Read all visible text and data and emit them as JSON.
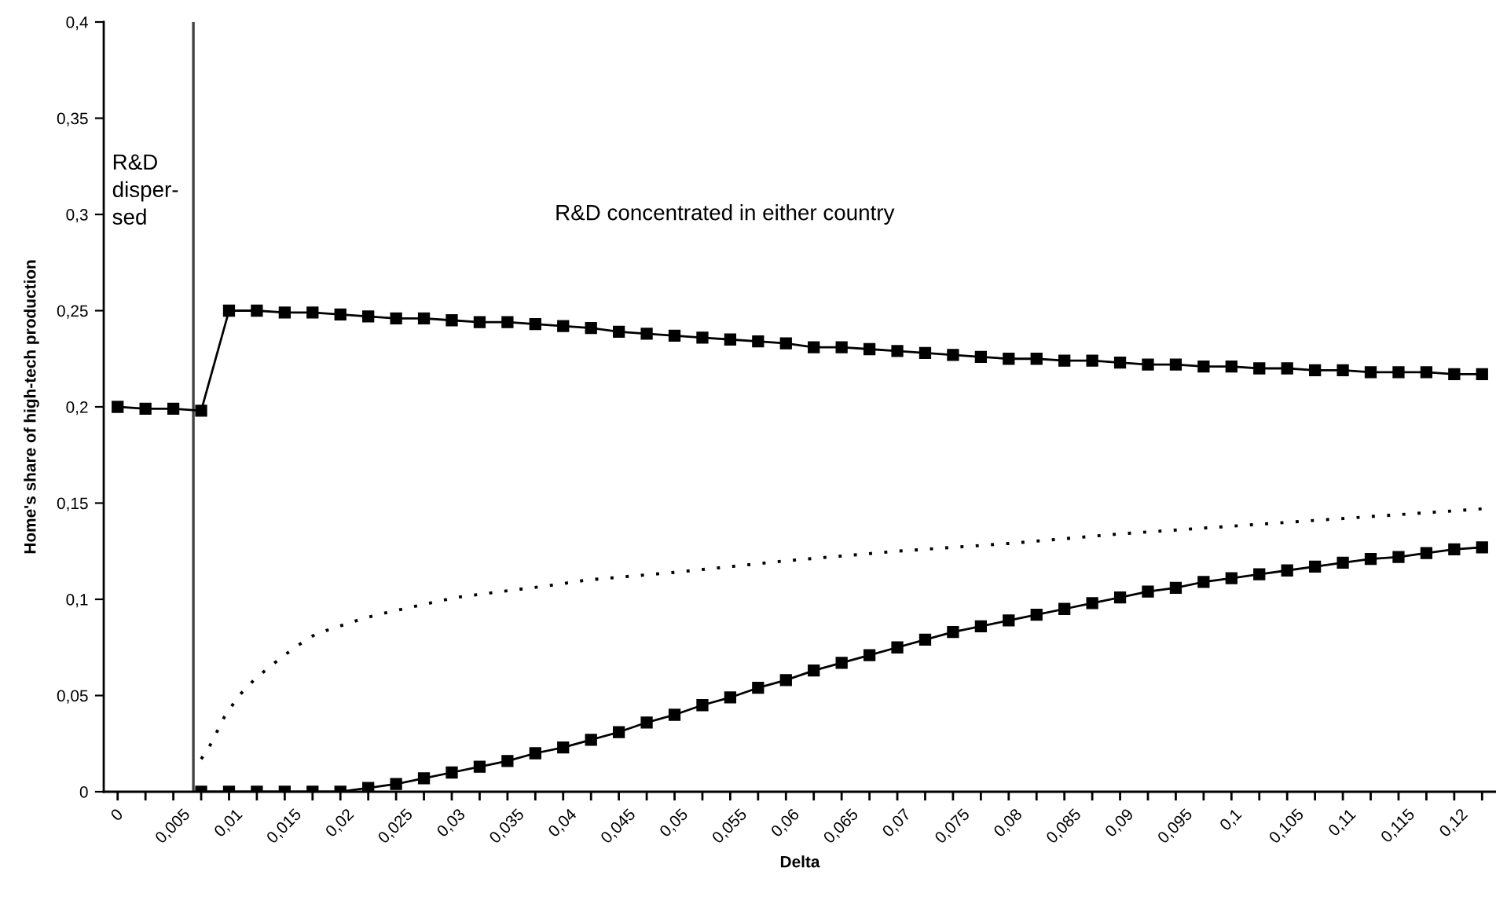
{
  "chart_data": {
    "type": "line",
    "xlabel": "Delta",
    "ylabel": "Home's share of high-tech production",
    "x": [
      0,
      0.0025,
      0.005,
      0.0075,
      0.01,
      0.0125,
      0.015,
      0.0175,
      0.02,
      0.0225,
      0.025,
      0.0275,
      0.03,
      0.0325,
      0.035,
      0.0375,
      0.04,
      0.0425,
      0.045,
      0.0475,
      0.05,
      0.0525,
      0.055,
      0.0575,
      0.06,
      0.0625,
      0.065,
      0.0675,
      0.07,
      0.0725,
      0.075,
      0.0775,
      0.08,
      0.0825,
      0.085,
      0.0875,
      0.09,
      0.0925,
      0.095,
      0.0975,
      0.1,
      0.1025,
      0.105,
      0.1075,
      0.11,
      0.1125,
      0.115,
      0.1175,
      0.12,
      0.1225
    ],
    "series": [
      {
        "color": "#000000",
        "marker": "square",
        "line_style": "solid",
        "values": [
          0.2,
          0.199,
          0.199,
          0.198,
          0.25,
          0.25,
          0.249,
          0.249,
          0.248,
          0.247,
          0.246,
          0.246,
          0.245,
          0.244,
          0.244,
          0.243,
          0.242,
          0.241,
          0.239,
          0.238,
          0.237,
          0.236,
          0.235,
          0.234,
          0.233,
          0.231,
          0.231,
          0.23,
          0.229,
          0.228,
          0.227,
          0.226,
          0.225,
          0.225,
          0.224,
          0.224,
          0.223,
          0.222,
          0.222,
          0.221,
          0.221,
          0.22,
          0.22,
          0.219,
          0.219,
          0.218,
          0.218,
          0.218,
          0.217,
          0.217
        ]
      },
      {
        "color": "#000000",
        "marker": "square",
        "line_style": "solid",
        "values": [
          null,
          null,
          null,
          0,
          0,
          0,
          0,
          0,
          0,
          0.002,
          0.004,
          0.007,
          0.01,
          0.013,
          0.016,
          0.02,
          0.023,
          0.027,
          0.031,
          0.036,
          0.04,
          0.045,
          0.049,
          0.054,
          0.058,
          0.063,
          0.067,
          0.071,
          0.075,
          0.079,
          0.083,
          0.086,
          0.089,
          0.092,
          0.095,
          0.098,
          0.101,
          0.104,
          0.106,
          0.109,
          0.111,
          0.113,
          0.115,
          0.117,
          0.119,
          0.121,
          0.122,
          0.124,
          0.126,
          0.127
        ]
      },
      {
        "color": "#000000",
        "marker": "none",
        "line_style": "dotted",
        "x": [
          0.0075,
          0.0082,
          0.0096,
          0.0109,
          0.0124,
          0.0141,
          0.0159,
          0.0178,
          0.0199,
          0.022,
          0.0241,
          0.0272,
          0.0304,
          0.0344,
          0.0386,
          0.0421,
          0.05,
          0.06,
          0.07,
          0.08,
          0.09,
          0.1,
          0.11,
          0.1225
        ],
        "values": [
          0.017,
          0.023,
          0.039,
          0.05,
          0.059,
          0.067,
          0.075,
          0.082,
          0.086,
          0.09,
          0.093,
          0.097,
          0.101,
          0.104,
          0.107,
          0.11,
          0.114,
          0.12,
          0.125,
          0.129,
          0.134,
          0.138,
          0.142,
          0.147
        ]
      }
    ],
    "xlim": [
      -0.00125,
      0.12375
    ],
    "ylim": [
      0,
      0.4
    ],
    "xticks": [
      0,
      {
        "value": 0.0025,
        "label": null
      },
      {
        "value": 0.005,
        "label": "0,005"
      },
      {
        "value": 0.0075,
        "label": null
      },
      {
        "value": 0.01,
        "label": "0,01"
      },
      {
        "value": 0.0125,
        "label": null
      },
      {
        "value": 0.015,
        "label": "0,015"
      },
      {
        "value": 0.0175,
        "label": null
      },
      {
        "value": 0.02,
        "label": "0,02"
      },
      {
        "value": 0.0225,
        "label": null
      },
      {
        "value": 0.025,
        "label": "0,025"
      },
      {
        "value": 0.0275,
        "label": null
      },
      {
        "value": 0.03,
        "label": "0,03"
      },
      {
        "value": 0.0325,
        "label": null
      },
      {
        "value": 0.035,
        "label": "0,035"
      },
      {
        "value": 0.0375,
        "label": null
      },
      {
        "value": 0.04,
        "label": "0,04"
      },
      {
        "value": 0.0425,
        "label": null
      },
      {
        "value": 0.045,
        "label": "0,045"
      },
      {
        "value": 0.0475,
        "label": null
      },
      {
        "value": 0.05,
        "label": "0,05"
      },
      {
        "value": 0.0525,
        "label": null
      },
      {
        "value": 0.055,
        "label": "0,055"
      },
      {
        "value": 0.0575,
        "label": null
      },
      {
        "value": 0.06,
        "label": "0,06"
      },
      {
        "value": 0.0625,
        "label": null
      },
      {
        "value": 0.065,
        "label": "0,065"
      },
      {
        "value": 0.0675,
        "label": null
      },
      {
        "value": 0.07,
        "label": "0,07"
      },
      {
        "value": 0.0725,
        "label": null
      },
      {
        "value": 0.075,
        "label": "0,075"
      },
      {
        "value": 0.0775,
        "label": null
      },
      {
        "value": 0.08,
        "label": "0,08"
      },
      {
        "value": 0.0825,
        "label": null
      },
      {
        "value": 0.085,
        "label": "0,085"
      },
      {
        "value": 0.0875,
        "label": null
      },
      {
        "value": 0.09,
        "label": "0,09"
      },
      {
        "value": 0.0925,
        "label": null
      },
      {
        "value": 0.095,
        "label": "0,095"
      },
      {
        "value": 0.0975,
        "label": null
      },
      {
        "value": 0.1,
        "label": "0,1"
      },
      {
        "value": 0.1025,
        "label": null
      },
      {
        "value": 0.105,
        "label": "0,105"
      },
      {
        "value": 0.1075,
        "label": null
      },
      {
        "value": 0.11,
        "label": "0,11"
      },
      {
        "value": 0.1125,
        "label": null
      },
      {
        "value": 0.115,
        "label": "0,115"
      },
      {
        "value": 0.1175,
        "label": null
      },
      {
        "value": 0.12,
        "label": "0,12"
      },
      {
        "value": 0.1225,
        "label": null
      }
    ],
    "yticks": [
      0,
      {
        "value": 0.05,
        "label": "0,05"
      },
      {
        "value": 0.1,
        "label": "0,1"
      },
      {
        "value": 0.15,
        "label": "0,15"
      },
      {
        "value": 0.2,
        "label": "0,2"
      },
      {
        "value": 0.25,
        "label": "0,25"
      },
      {
        "value": 0.3,
        "label": "0,3"
      },
      {
        "value": 0.35,
        "label": "0,35"
      },
      {
        "value": 0.4,
        "label": "0,4"
      }
    ],
    "ref_lines": [
      {
        "axis": "x",
        "value": 0.0068,
        "color": "#404040"
      }
    ],
    "annotations": [
      "R&D\ndisper-\nsed",
      "R&D concentrated in either country"
    ]
  }
}
